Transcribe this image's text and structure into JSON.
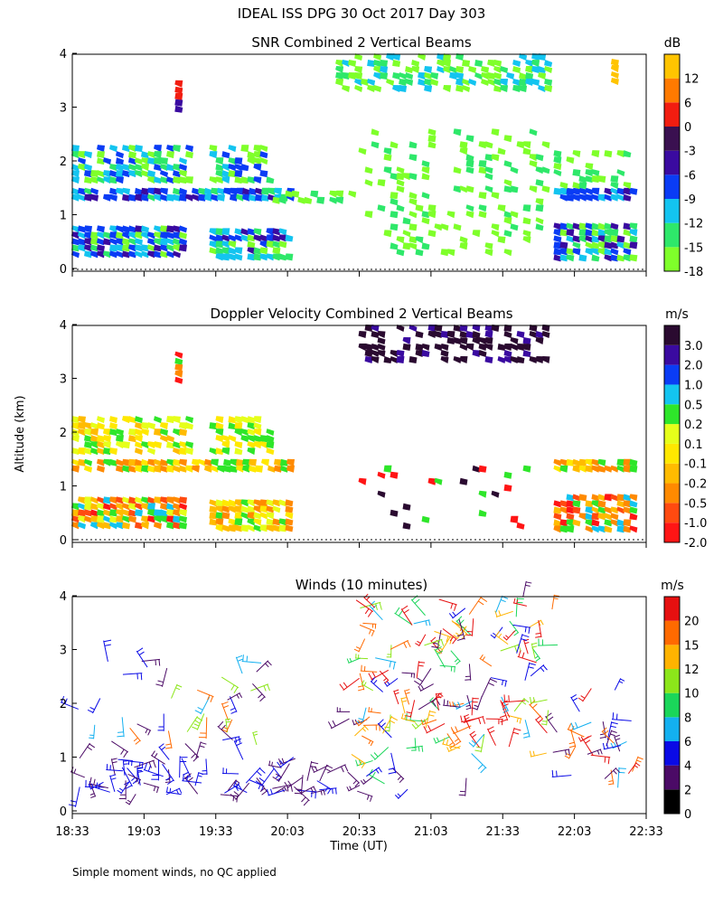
{
  "title": "IDEAL ISS DPG  30 Oct 2017 Day 303",
  "footnote": "Simple moment winds, no QC applied",
  "chart_data": [
    {
      "type": "heatmap",
      "title": "SNR Combined 2 Vertical Beams",
      "ylabel": "Altitude (km)",
      "ylim": [
        0,
        4
      ],
      "yticks": [
        "0",
        "1",
        "2",
        "3",
        "4"
      ],
      "colorbar": {
        "unit": "dB",
        "labels": [
          "-18",
          "-15",
          "-12",
          "-9",
          "-6",
          "-3",
          "0",
          "6",
          "12"
        ],
        "colors": [
          "#7fff2a",
          "#2ee86a",
          "#13c4f0",
          "#0a3cf5",
          "#3a0aa0",
          "#3a1050",
          "#f21d10",
          "#ff7a00",
          "#ffc400"
        ]
      }
    },
    {
      "type": "heatmap",
      "title": "Doppler Velocity Combined 2 Vertical Beams",
      "ylabel": "Altitude (km)",
      "ylim": [
        0,
        4
      ],
      "yticks": [
        "0",
        "1",
        "2",
        "3",
        "4"
      ],
      "colorbar": {
        "unit": "m/s",
        "labels": [
          "-2.0",
          "-1.0",
          "-0.5",
          "-0.2",
          "-0.1",
          "0.1",
          "0.2",
          "0.5",
          "1.0",
          "2.0",
          "3.0"
        ],
        "colors": [
          "#ff1515",
          "#ff4a10",
          "#ff8a00",
          "#ffbb00",
          "#ffe800",
          "#e6ff1a",
          "#2ee62a",
          "#13c4f0",
          "#0a3cf5",
          "#3a0aa0",
          "#2a0a30"
        ]
      }
    },
    {
      "type": "scatter",
      "title": "Winds (10 minutes)",
      "ylabel": "Altitude (km)",
      "ylim": [
        0,
        4
      ],
      "yticks": [
        "0",
        "1",
        "2",
        "3",
        "4"
      ],
      "colorbar": {
        "unit": "m/s",
        "labels": [
          "0",
          "2",
          "4",
          "6",
          "8",
          "10",
          "12",
          "15",
          "20"
        ],
        "colors": [
          "#000000",
          "#4b0a66",
          "#0a0ae6",
          "#13b0f0",
          "#1ad65a",
          "#8ce61a",
          "#ffb300",
          "#ff6a00",
          "#e61010"
        ]
      }
    }
  ],
  "xaxis": {
    "label": "Time (UT)",
    "ticks": [
      "18:33",
      "19:03",
      "19:33",
      "20:03",
      "20:33",
      "21:03",
      "21:33",
      "22:03",
      "22:33"
    ]
  }
}
